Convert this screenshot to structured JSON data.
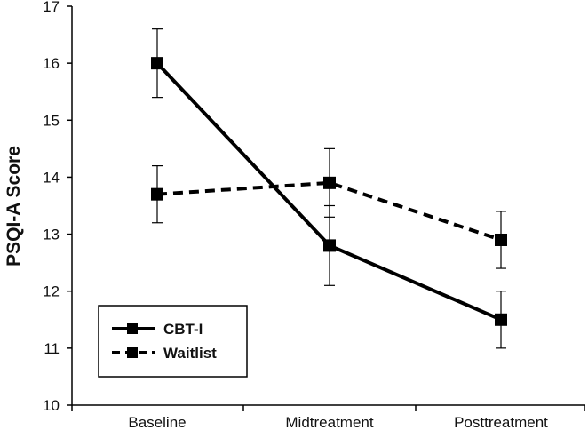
{
  "chart_data": {
    "type": "line",
    "title": "",
    "xlabel": "",
    "ylabel": "PSQI-A Score",
    "ylim": [
      10,
      17
    ],
    "yticks": [
      "10",
      "11",
      "12",
      "13",
      "14",
      "15",
      "16",
      "17"
    ],
    "categories": [
      "Baseline",
      "Midtreatment",
      "Posttreatment"
    ],
    "series": [
      {
        "name": "CBT-I",
        "style": "solid",
        "color": "#000000",
        "values": [
          16.0,
          12.8,
          11.5
        ],
        "error_low": [
          15.4,
          12.1,
          11.0
        ],
        "error_high": [
          16.6,
          13.5,
          12.0
        ]
      },
      {
        "name": "Waitlist",
        "style": "dashed",
        "color": "#000000",
        "values": [
          13.7,
          13.9,
          12.9
        ],
        "error_low": [
          13.2,
          13.3,
          12.4
        ],
        "error_high": [
          14.2,
          14.5,
          13.4
        ]
      }
    ],
    "legend_position": "bottom-left",
    "grid": false
  }
}
